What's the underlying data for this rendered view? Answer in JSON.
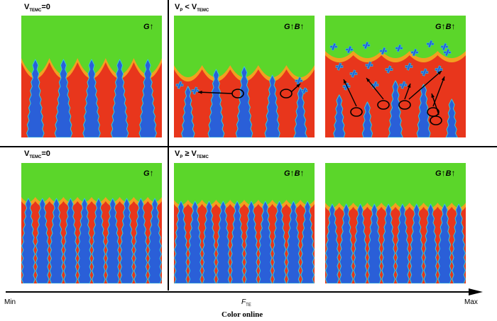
{
  "rows": [
    {
      "left_label": {
        "main": "V",
        "sub": "TEMC",
        "suffix": "=0"
      },
      "right_label": {
        "main": "V",
        "sub1": "P",
        "op": " < ",
        "main2": "V",
        "sub2": "TEMC"
      }
    },
    {
      "left_label": {
        "main": "V",
        "sub": "TEMC",
        "suffix": "=0"
      },
      "right_label": {
        "main": "V",
        "sub1": "P",
        "op": " ≥ ",
        "main2": "V",
        "sub2": "TEMC"
      }
    }
  ],
  "field_labels": {
    "g": "G",
    "b": "B",
    "up_arrow": "↑"
  },
  "axis": {
    "min": "Min",
    "max": "Max",
    "label_main": "F",
    "label_sub": "TE"
  },
  "caption": "Color online",
  "colors": {
    "liquid": "#5bd62a",
    "solid": "#2a5fd8",
    "interface": "#e8361c",
    "edge": "#35c9d8",
    "arrow": "#000000"
  },
  "icons": [
    "up-arrow-icon",
    "ellipse-marker-icon",
    "axis-arrow-icon"
  ]
}
